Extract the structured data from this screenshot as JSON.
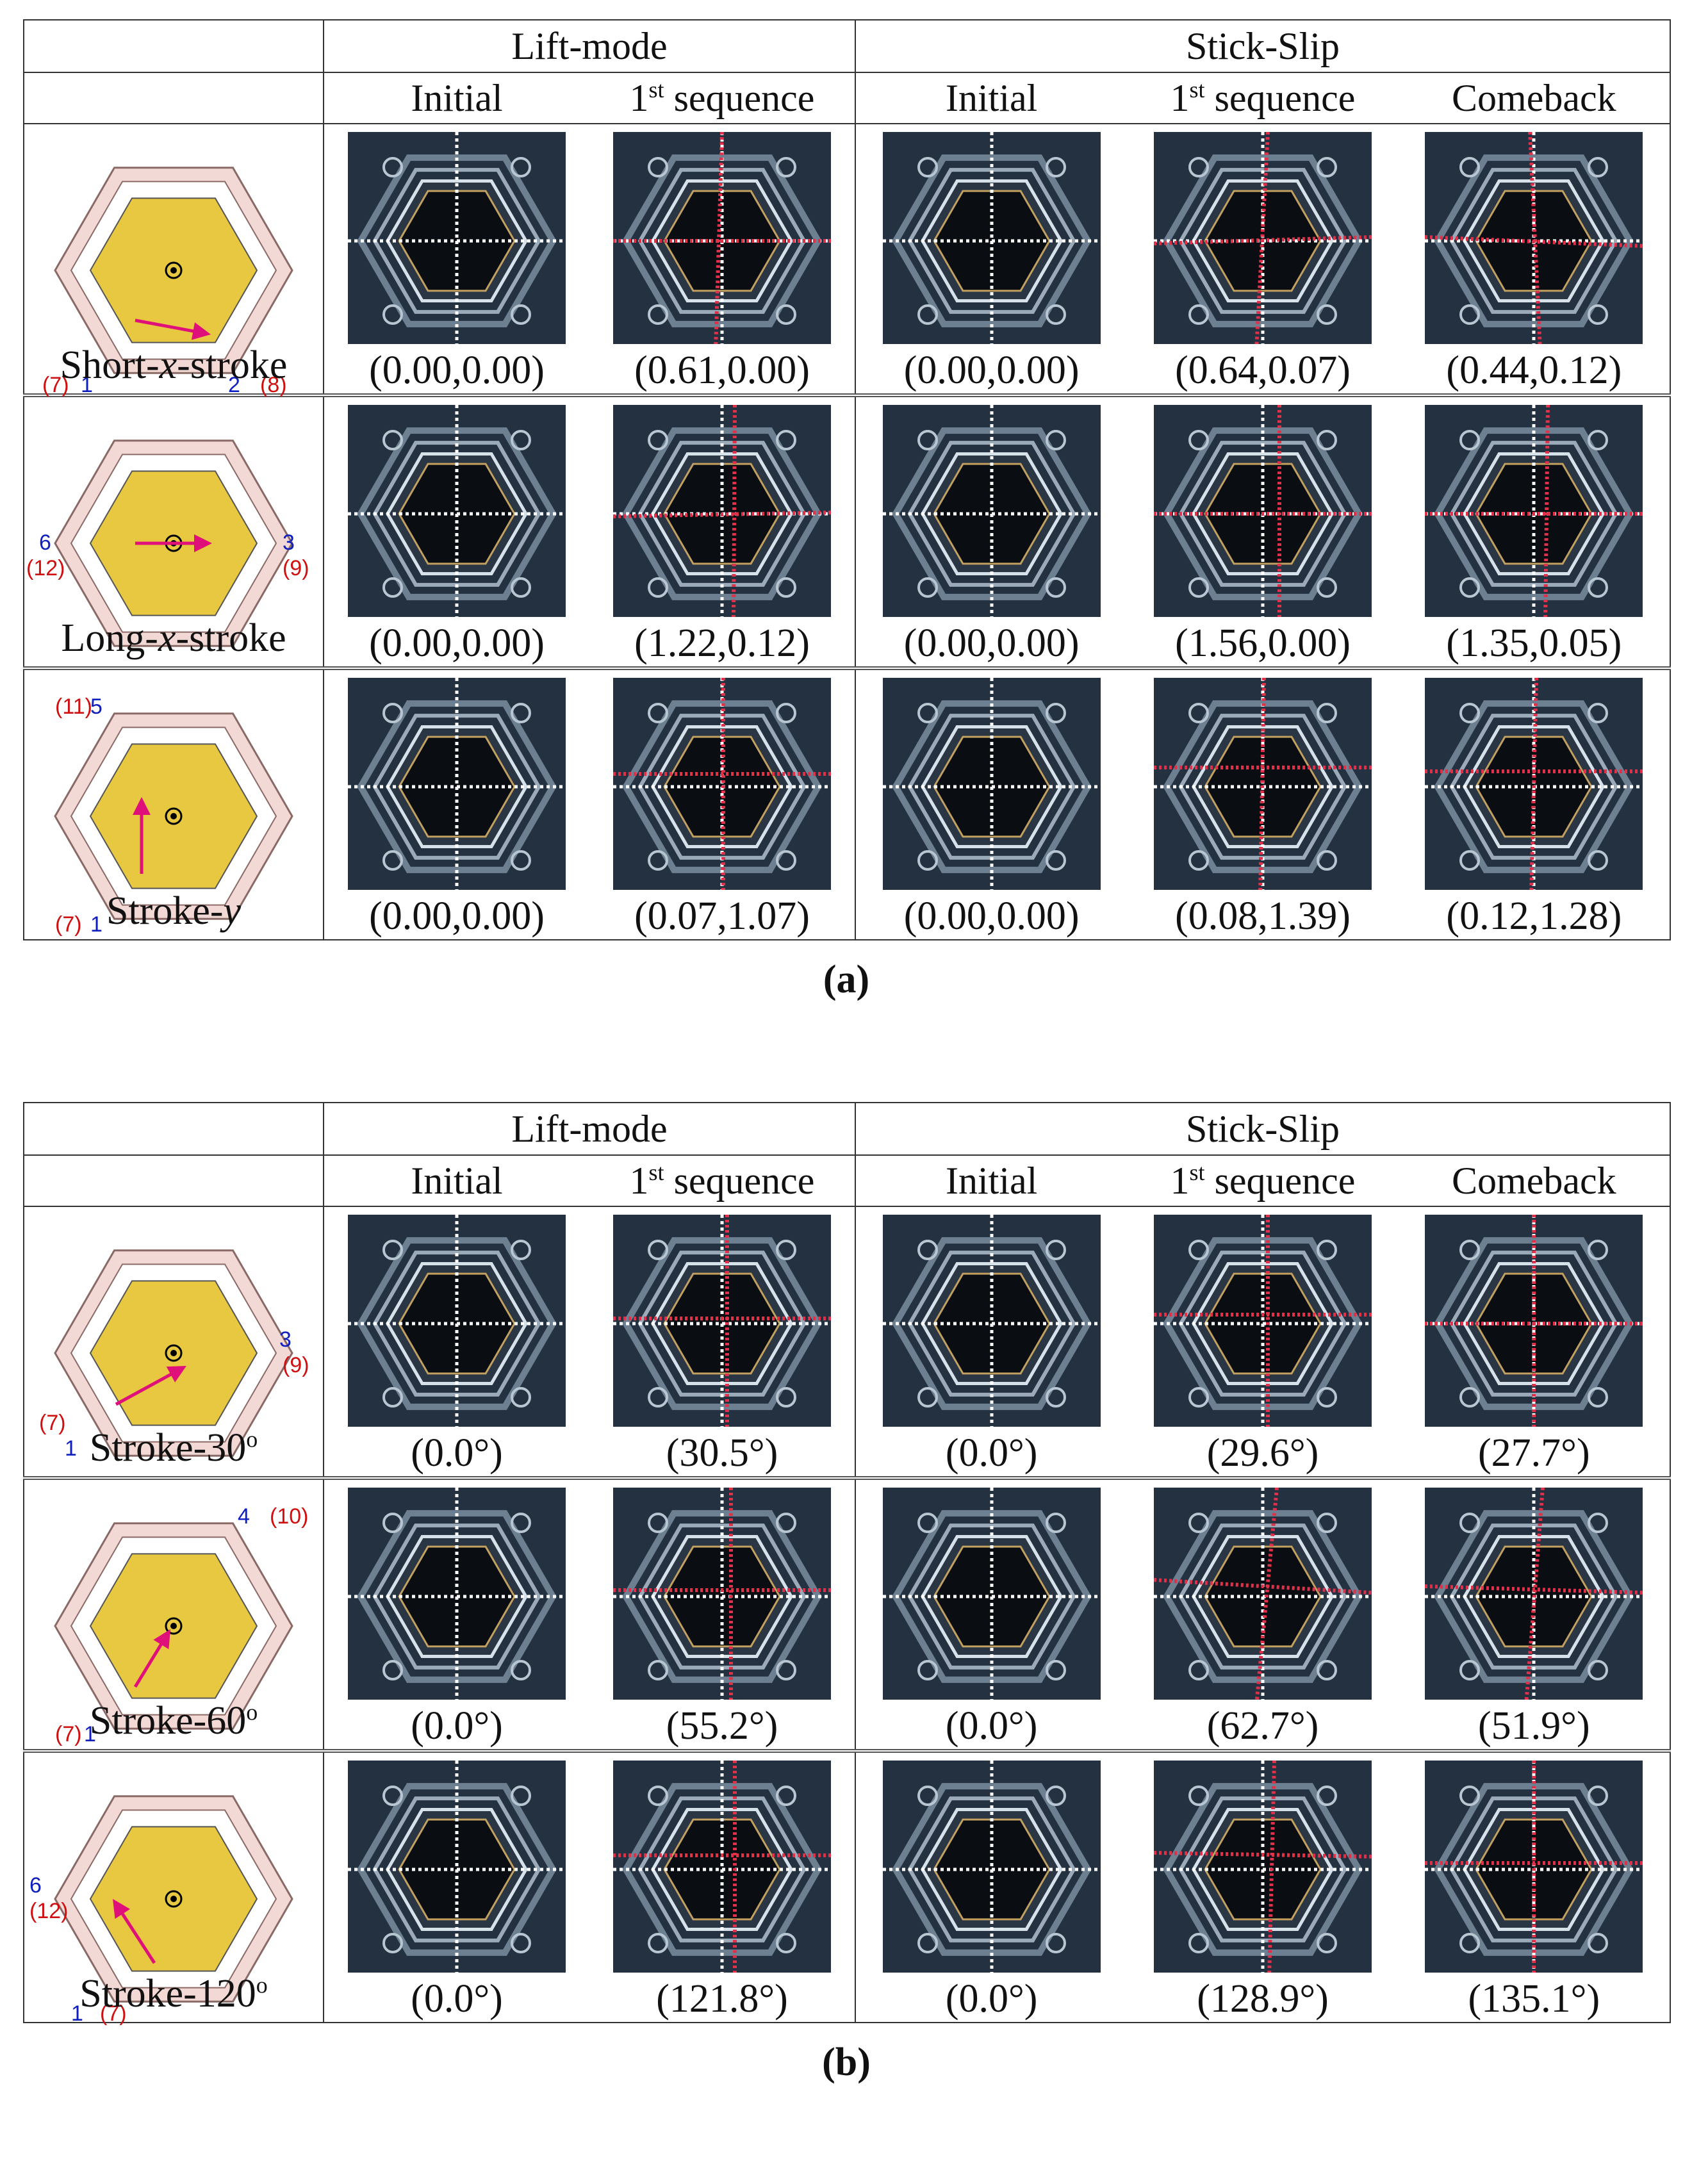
{
  "figures": [
    {
      "caption": "(a)",
      "header": {
        "group1": "Lift-mode",
        "group2": "Stick-Slip",
        "cols": [
          "Initial",
          "1",
          "st",
          " sequence",
          "Initial",
          "1",
          "st",
          " sequence",
          "Comeback"
        ]
      },
      "rows": [
        {
          "name_pre": "Short-",
          "name_it": "x",
          "name_post": "-stroke",
          "labels": {
            "a": "(7)",
            "b": "1",
            "c": "2",
            "d": "(8)"
          },
          "values": [
            "(0.00,0.00)",
            "(0.61,0.00)",
            "(0.00,0.00)",
            "(0.64,0.07)",
            "(0.44,0.12)"
          ]
        },
        {
          "name_pre": "Long-",
          "name_it": "x",
          "name_post": "-stroke",
          "labels": {
            "a": "6",
            "b": "(12)",
            "c": "3",
            "d": "(9)"
          },
          "values": [
            "(0.00,0.00)",
            "(1.22,0.12)",
            "(0.00,0.00)",
            "(1.56,0.00)",
            "(1.35,0.05)"
          ]
        },
        {
          "name_pre": "Stroke-",
          "name_it": "y",
          "name_post": "",
          "labels": {
            "a": "(11)",
            "b": "5",
            "c": "(7)",
            "d": "1"
          },
          "values": [
            "(0.00,0.00)",
            "(0.07,1.07)",
            "(0.00,0.00)",
            "(0.08,1.39)",
            "(0.12,1.28)"
          ]
        }
      ]
    },
    {
      "caption": "(b)",
      "header": {
        "group1": "Lift-mode",
        "group2": "Stick-Slip",
        "cols": [
          "Initial",
          "1",
          "st",
          " sequence",
          "Initial",
          "1",
          "st",
          " sequence",
          "Comeback"
        ]
      },
      "rows": [
        {
          "name_pre": "Stroke-30",
          "name_it": "",
          "name_post": "o",
          "labels": {
            "a": "(7)",
            "b": "1",
            "c": "3",
            "d": "(9)"
          },
          "values": [
            "(0.0°)",
            "(30.5°)",
            "(0.0°)",
            "(29.6°)",
            "(27.7°)"
          ]
        },
        {
          "name_pre": "Stroke-60",
          "name_it": "",
          "name_post": "o",
          "labels": {
            "a": "(7)",
            "b": "1",
            "c": "4",
            "d": "(10)"
          },
          "values": [
            "(0.0°)",
            "(55.2°)",
            "(0.0°)",
            "(62.7°)",
            "(51.9°)"
          ]
        },
        {
          "name_pre": "Stroke-120",
          "name_it": "",
          "name_post": "o",
          "labels": {
            "a": "6",
            "b": "(12)",
            "c": "1",
            "d": "(7)"
          },
          "values": [
            "(0.0°)",
            "(121.8°)",
            "(0.0°)",
            "(128.9°)",
            "(135.1°)"
          ]
        }
      ]
    }
  ],
  "colors": {
    "hex_fill": "#e8c840",
    "frame_fill": "#f3d9d5",
    "arrow": "#e0107a",
    "red_line": "#e0304a",
    "white_line": "#ffffff",
    "blue_label": "#1020c0",
    "red_label": "#d01010"
  }
}
